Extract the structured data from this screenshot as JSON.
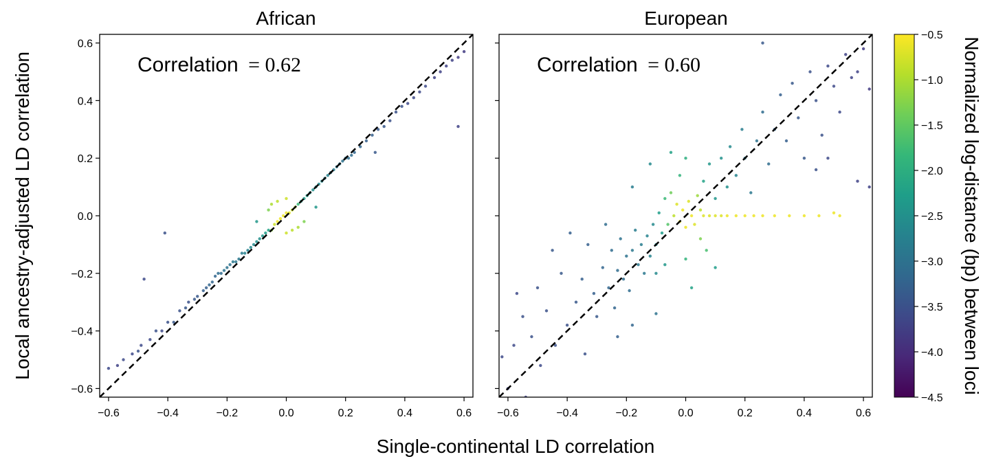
{
  "figure": {
    "ylabel": "Local ancestry-adjusted LD correlation",
    "xlabel": "Single-continental LD correlation",
    "colorbar_label": "Normalized log-distance (bp) between loci"
  },
  "chart_data": [
    {
      "type": "scatter",
      "title": "African",
      "annotation_text": "Correlation",
      "annotation_value": "= 0.62",
      "xlim": [
        -0.63,
        0.63
      ],
      "ylim": [
        -0.63,
        0.63
      ],
      "xticks": [
        "−0.6",
        "−0.4",
        "−0.2",
        "0.0",
        "0.2",
        "0.4",
        "0.6"
      ],
      "xtick_values": [
        -0.6,
        -0.4,
        -0.2,
        0.0,
        0.2,
        0.4,
        0.6
      ],
      "yticks": [
        "−0.6",
        "−0.4",
        "−0.2",
        "0.0",
        "0.2",
        "0.4",
        "0.6"
      ],
      "ytick_values": [
        -0.6,
        -0.4,
        -0.2,
        0.0,
        0.2,
        0.4,
        0.6
      ],
      "reference_line": "y = x (dashed black)",
      "points": [
        [
          -0.6,
          -0.53,
          -3.6
        ],
        [
          -0.57,
          -0.52,
          -3.7
        ],
        [
          -0.55,
          -0.5,
          -3.6
        ],
        [
          -0.52,
          -0.48,
          -3.6
        ],
        [
          -0.5,
          -0.47,
          -3.5
        ],
        [
          -0.49,
          -0.45,
          -3.6
        ],
        [
          -0.46,
          -0.43,
          -3.6
        ],
        [
          -0.44,
          -0.4,
          -3.5
        ],
        [
          -0.42,
          -0.4,
          -3.6
        ],
        [
          -0.4,
          -0.37,
          -3.5
        ],
        [
          -0.38,
          -0.37,
          -3.4
        ],
        [
          -0.36,
          -0.33,
          -3.5
        ],
        [
          -0.34,
          -0.32,
          -3.4
        ],
        [
          -0.33,
          -0.3,
          -3.5
        ],
        [
          -0.31,
          -0.29,
          -3.4
        ],
        [
          -0.3,
          -0.28,
          -3.4
        ],
        [
          -0.28,
          -0.26,
          -3.3
        ],
        [
          -0.27,
          -0.25,
          -3.3
        ],
        [
          -0.26,
          -0.24,
          -3.2
        ],
        [
          -0.25,
          -0.23,
          -3.2
        ],
        [
          -0.48,
          -0.22,
          -3.6
        ],
        [
          -0.41,
          -0.06,
          -3.5
        ],
        [
          -0.24,
          -0.21,
          -3.2
        ],
        [
          -0.23,
          -0.2,
          -3.1
        ],
        [
          -0.22,
          -0.2,
          -3.1
        ],
        [
          -0.21,
          -0.19,
          -3.0
        ],
        [
          -0.2,
          -0.18,
          -3.0
        ],
        [
          -0.19,
          -0.17,
          -3.0
        ],
        [
          -0.18,
          -0.16,
          -2.9
        ],
        [
          -0.17,
          -0.16,
          -2.9
        ],
        [
          -0.16,
          -0.15,
          -2.9
        ],
        [
          -0.15,
          -0.13,
          -2.8
        ],
        [
          -0.14,
          -0.13,
          -2.7
        ],
        [
          -0.13,
          -0.12,
          -2.7
        ],
        [
          -0.12,
          -0.11,
          -2.6
        ],
        [
          -0.11,
          -0.1,
          -2.6
        ],
        [
          -0.1,
          -0.09,
          -2.5
        ],
        [
          -0.09,
          -0.08,
          -2.5
        ],
        [
          -0.08,
          -0.07,
          -2.4
        ],
        [
          -0.07,
          -0.06,
          -2.3
        ],
        [
          -0.06,
          -0.05,
          -2.2
        ],
        [
          -0.05,
          -0.05,
          -1.2
        ],
        [
          -0.04,
          -0.03,
          -0.8
        ],
        [
          -0.03,
          -0.02,
          -0.6
        ],
        [
          -0.02,
          -0.01,
          -0.6
        ],
        [
          -0.01,
          0.0,
          -0.6
        ],
        [
          0.0,
          0.01,
          -0.6
        ],
        [
          0.01,
          0.01,
          -0.7
        ],
        [
          0.02,
          0.02,
          -0.8
        ],
        [
          0.03,
          0.03,
          -1.0
        ],
        [
          0.04,
          0.04,
          -1.8
        ],
        [
          0.05,
          0.05,
          -2.2
        ],
        [
          0.06,
          0.06,
          -2.3
        ],
        [
          0.07,
          0.07,
          -2.3
        ],
        [
          0.08,
          0.08,
          -2.4
        ],
        [
          0.09,
          0.09,
          -2.5
        ],
        [
          0.1,
          0.1,
          -2.5
        ],
        [
          0.11,
          0.11,
          -2.6
        ],
        [
          0.12,
          0.12,
          -2.6
        ],
        [
          0.13,
          0.13,
          -2.7
        ],
        [
          0.14,
          0.14,
          -2.7
        ],
        [
          0.15,
          0.15,
          -2.8
        ],
        [
          0.16,
          0.16,
          -2.8
        ],
        [
          0.17,
          0.17,
          -2.9
        ],
        [
          0.18,
          0.18,
          -2.9
        ],
        [
          0.19,
          0.19,
          -3.0
        ],
        [
          0.2,
          0.2,
          -3.0
        ],
        [
          0.21,
          0.2,
          -3.1
        ],
        [
          0.22,
          0.21,
          -3.1
        ],
        [
          0.23,
          0.22,
          -3.2
        ],
        [
          0.25,
          0.24,
          -3.2
        ],
        [
          0.27,
          0.26,
          -3.3
        ],
        [
          0.29,
          0.28,
          -3.3
        ],
        [
          0.31,
          0.3,
          -3.4
        ],
        [
          0.33,
          0.31,
          -3.4
        ],
        [
          0.35,
          0.33,
          -3.5
        ],
        [
          0.37,
          0.36,
          -3.5
        ],
        [
          0.39,
          0.38,
          -3.5
        ],
        [
          0.41,
          0.39,
          -3.6
        ],
        [
          0.43,
          0.41,
          -3.6
        ],
        [
          0.45,
          0.43,
          -3.6
        ],
        [
          0.47,
          0.45,
          -3.6
        ],
        [
          0.5,
          0.48,
          -3.7
        ],
        [
          0.52,
          0.5,
          -3.7
        ],
        [
          0.54,
          0.52,
          -3.7
        ],
        [
          0.56,
          0.54,
          -3.7
        ],
        [
          0.58,
          0.55,
          -3.8
        ],
        [
          0.6,
          0.57,
          -3.8
        ],
        [
          0.58,
          0.31,
          -3.7
        ],
        [
          0.3,
          0.22,
          -3.4
        ],
        [
          -0.05,
          0.04,
          -1.0
        ],
        [
          0.04,
          -0.04,
          -1.0
        ],
        [
          -0.03,
          0.05,
          -0.9
        ],
        [
          0.02,
          -0.05,
          -0.9
        ],
        [
          -0.06,
          0.02,
          -1.3
        ],
        [
          0.06,
          -0.02,
          -1.3
        ],
        [
          0.0,
          0.06,
          -0.8
        ],
        [
          0.0,
          -0.06,
          -0.8
        ],
        [
          -0.1,
          -0.02,
          -2.4
        ],
        [
          0.1,
          0.03,
          -2.4
        ]
      ]
    },
    {
      "type": "scatter",
      "title": "European",
      "annotation_text": "Correlation",
      "annotation_value": "= 0.60",
      "xlim": [
        -0.63,
        0.63
      ],
      "ylim": [
        -0.63,
        0.63
      ],
      "xticks": [
        "−0.6",
        "−0.4",
        "−0.2",
        "0.0",
        "0.2",
        "0.4",
        "0.6"
      ],
      "xtick_values": [
        -0.6,
        -0.4,
        -0.2,
        0.0,
        0.2,
        0.4,
        0.6
      ],
      "yticks": [
        "−0.6",
        "−0.4",
        "−0.2",
        "0.0",
        "0.2",
        "0.4",
        "0.6"
      ],
      "ytick_values": [
        -0.6,
        -0.4,
        -0.2,
        0.0,
        0.2,
        0.4,
        0.6
      ],
      "reference_line": "y = x (dashed black)",
      "points": [
        [
          -0.62,
          -0.49,
          -3.6
        ],
        [
          -0.6,
          -0.6,
          -3.7
        ],
        [
          -0.58,
          -0.45,
          -3.6
        ],
        [
          -0.57,
          -0.27,
          -3.6
        ],
        [
          -0.55,
          -0.35,
          -3.5
        ],
        [
          -0.54,
          -0.63,
          -3.7
        ],
        [
          -0.52,
          -0.42,
          -3.5
        ],
        [
          -0.5,
          -0.25,
          -3.5
        ],
        [
          -0.49,
          -0.52,
          -3.6
        ],
        [
          -0.47,
          -0.33,
          -3.5
        ],
        [
          -0.45,
          -0.12,
          -3.4
        ],
        [
          -0.44,
          -0.45,
          -3.5
        ],
        [
          -0.42,
          -0.2,
          -3.4
        ],
        [
          -0.4,
          -0.38,
          -3.5
        ],
        [
          -0.39,
          -0.06,
          -3.3
        ],
        [
          -0.37,
          -0.3,
          -3.4
        ],
        [
          -0.35,
          -0.22,
          -3.3
        ],
        [
          -0.34,
          -0.48,
          -3.5
        ],
        [
          -0.33,
          -0.1,
          -3.3
        ],
        [
          -0.31,
          -0.27,
          -3.3
        ],
        [
          -0.3,
          -0.35,
          -3.4
        ],
        [
          -0.28,
          -0.18,
          -3.2
        ],
        [
          -0.27,
          -0.03,
          -3.1
        ],
        [
          -0.26,
          -0.25,
          -3.2
        ],
        [
          -0.25,
          -0.12,
          -3.1
        ],
        [
          -0.24,
          -0.32,
          -3.2
        ],
        [
          -0.23,
          -0.19,
          -3.1
        ],
        [
          -0.22,
          -0.08,
          -3.0
        ],
        [
          -0.21,
          -0.22,
          -3.1
        ],
        [
          -0.2,
          -0.14,
          -3.0
        ],
        [
          -0.19,
          -0.26,
          -3.1
        ],
        [
          -0.18,
          -0.12,
          -2.9
        ],
        [
          -0.17,
          -0.05,
          -2.8
        ],
        [
          -0.16,
          -0.17,
          -2.9
        ],
        [
          -0.15,
          -0.1,
          -2.8
        ],
        [
          -0.14,
          -0.2,
          -2.9
        ],
        [
          -0.13,
          -0.07,
          -2.7
        ],
        [
          -0.12,
          -0.14,
          -2.7
        ],
        [
          -0.11,
          -0.03,
          -2.6
        ],
        [
          -0.1,
          -0.1,
          -2.6
        ],
        [
          -0.09,
          0.01,
          -2.3
        ],
        [
          -0.08,
          -0.06,
          -2.3
        ],
        [
          -0.07,
          0.06,
          -1.8
        ],
        [
          -0.06,
          -0.03,
          -1.6
        ],
        [
          -0.05,
          0.08,
          -1.4
        ],
        [
          -0.04,
          0.0,
          -0.9
        ],
        [
          -0.03,
          0.04,
          -0.7
        ],
        [
          -0.02,
          -0.02,
          -0.6
        ],
        [
          -0.01,
          0.02,
          -0.6
        ],
        [
          0.0,
          -0.04,
          -0.6
        ],
        [
          0.01,
          0.05,
          -0.7
        ],
        [
          0.02,
          0.0,
          -0.6
        ],
        [
          0.03,
          -0.03,
          -0.7
        ],
        [
          0.04,
          0.07,
          -1.1
        ],
        [
          0.05,
          0.02,
          -0.9
        ],
        [
          0.06,
          0.0,
          -0.7
        ],
        [
          0.08,
          0.0,
          -0.7
        ],
        [
          0.1,
          0.0,
          -0.7
        ],
        [
          0.12,
          0.0,
          -0.7
        ],
        [
          0.14,
          0.0,
          -0.6
        ],
        [
          0.17,
          0.0,
          -0.6
        ],
        [
          0.2,
          0.0,
          -0.6
        ],
        [
          0.23,
          0.0,
          -0.6
        ],
        [
          0.26,
          0.0,
          -0.6
        ],
        [
          0.3,
          0.0,
          -0.6
        ],
        [
          0.35,
          0.0,
          -0.6
        ],
        [
          0.4,
          0.0,
          -0.6
        ],
        [
          0.45,
          0.0,
          -0.6
        ],
        [
          0.5,
          0.01,
          -0.6
        ],
        [
          0.52,
          0.0,
          -0.6
        ],
        [
          0.06,
          0.12,
          -2.2
        ],
        [
          0.08,
          0.18,
          -2.4
        ],
        [
          0.1,
          0.06,
          -2.4
        ],
        [
          0.12,
          0.2,
          -2.5
        ],
        [
          0.14,
          0.1,
          -2.5
        ],
        [
          0.15,
          0.24,
          -2.6
        ],
        [
          0.17,
          0.14,
          -2.7
        ],
        [
          0.19,
          0.3,
          -2.8
        ],
        [
          0.2,
          0.2,
          -2.8
        ],
        [
          0.22,
          0.08,
          -2.9
        ],
        [
          0.24,
          0.26,
          -3.0
        ],
        [
          0.26,
          0.36,
          -3.1
        ],
        [
          0.28,
          0.18,
          -3.1
        ],
        [
          0.3,
          0.3,
          -3.2
        ],
        [
          0.32,
          0.42,
          -3.3
        ],
        [
          0.34,
          0.26,
          -3.3
        ],
        [
          0.36,
          0.46,
          -3.4
        ],
        [
          0.38,
          0.34,
          -3.4
        ],
        [
          0.4,
          0.2,
          -3.4
        ],
        [
          0.42,
          0.5,
          -3.5
        ],
        [
          0.44,
          0.4,
          -3.5
        ],
        [
          0.46,
          0.28,
          -3.5
        ],
        [
          0.48,
          0.52,
          -3.6
        ],
        [
          0.5,
          0.45,
          -3.6
        ],
        [
          0.52,
          0.36,
          -3.6
        ],
        [
          0.54,
          0.56,
          -3.7
        ],
        [
          0.56,
          0.48,
          -3.7
        ],
        [
          0.58,
          0.5,
          -3.7
        ],
        [
          0.6,
          0.58,
          -3.8
        ],
        [
          0.62,
          0.44,
          -3.8
        ],
        [
          0.62,
          0.1,
          -3.7
        ],
        [
          0.58,
          0.12,
          -3.7
        ],
        [
          0.48,
          0.2,
          -3.6
        ],
        [
          0.26,
          0.6,
          -3.4
        ],
        [
          0.44,
          0.16,
          -3.5
        ],
        [
          0.05,
          -0.08,
          -1.3
        ],
        [
          0.07,
          -0.12,
          -1.7
        ],
        [
          0.0,
          -0.15,
          -1.9
        ],
        [
          -0.02,
          0.14,
          -1.9
        ],
        [
          0.0,
          0.2,
          -2.0
        ],
        [
          -0.07,
          -0.17,
          -2.4
        ],
        [
          -0.1,
          -0.2,
          -2.6
        ],
        [
          0.02,
          -0.25,
          -2.2
        ],
        [
          -0.05,
          0.22,
          -2.2
        ],
        [
          -0.18,
          -0.38,
          -3.2
        ],
        [
          -0.1,
          -0.34,
          -3.0
        ],
        [
          -0.23,
          -0.42,
          -3.3
        ],
        [
          -0.12,
          0.18,
          -2.6
        ],
        [
          0.1,
          -0.18,
          -2.3
        ],
        [
          -0.18,
          0.1,
          -2.8
        ]
      ]
    }
  ],
  "colorbar": {
    "range": [
      -4.5,
      -0.5
    ],
    "tick_labels": [
      "−0.5",
      "−1.0",
      "−1.5",
      "−2.0",
      "−2.5",
      "−3.0",
      "−3.5",
      "−4.0",
      "−4.5"
    ],
    "tick_values": [
      -0.5,
      -1.0,
      -1.5,
      -2.0,
      -2.5,
      -3.0,
      -3.5,
      -4.0,
      -4.5
    ],
    "colormap": "viridis",
    "stops": [
      "#440154",
      "#482878",
      "#3e4989",
      "#31688e",
      "#26828e",
      "#1f9e89",
      "#35b779",
      "#6ece58",
      "#b5de2b",
      "#fde725"
    ]
  },
  "colors": {
    "axis": "#000000",
    "reference_line": "#000000",
    "background": "#ffffff"
  }
}
